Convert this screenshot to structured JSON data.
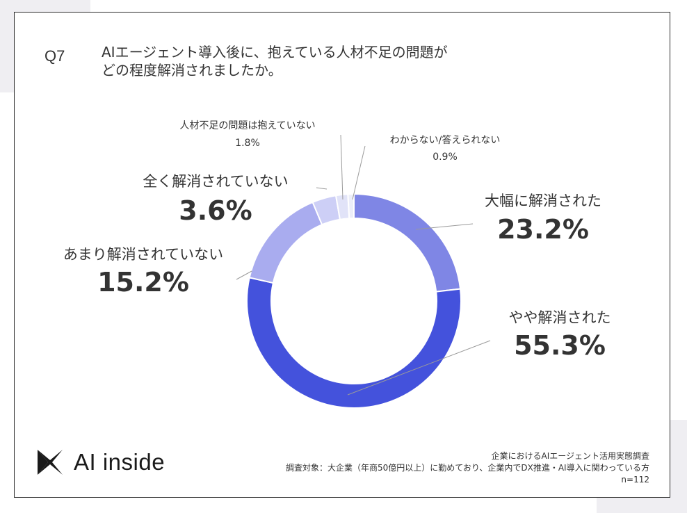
{
  "question": {
    "number": "Q7",
    "line1": "AIエージェント導入後に、抱えている人材不足の問題が",
    "line2": "どの程度解消されましたか。"
  },
  "chart_data": {
    "type": "pie",
    "donut": true,
    "slices": [
      {
        "label": "大幅に解消された",
        "value": 23.2,
        "display": "23.2%",
        "color": "#7f86e5"
      },
      {
        "label": "やや解消された",
        "value": 55.3,
        "display": "55.3%",
        "color": "#4452dc"
      },
      {
        "label": "あまり解消されていない",
        "value": 15.2,
        "display": "15.2%",
        "color": "#a9acef"
      },
      {
        "label": "全く解消されていない",
        "value": 3.6,
        "display": "3.6%",
        "color": "#cdcff6"
      },
      {
        "label": "人材不足の問題は抱えていない",
        "value": 1.8,
        "display": "1.8%",
        "color": "#e1e3f8"
      },
      {
        "label": "わからない/答えられない",
        "value": 0.9,
        "display": "0.9%",
        "color": "#eceef9"
      }
    ]
  },
  "logo": {
    "text": "AI inside"
  },
  "footer": {
    "line1": "企業におけるAIエージェント活用実態調査",
    "line2": "調査対象：大企業（年商50億円以上）に勤めており、企業内でDX推進・AI導入に関わっている方",
    "line3": "n=112"
  }
}
